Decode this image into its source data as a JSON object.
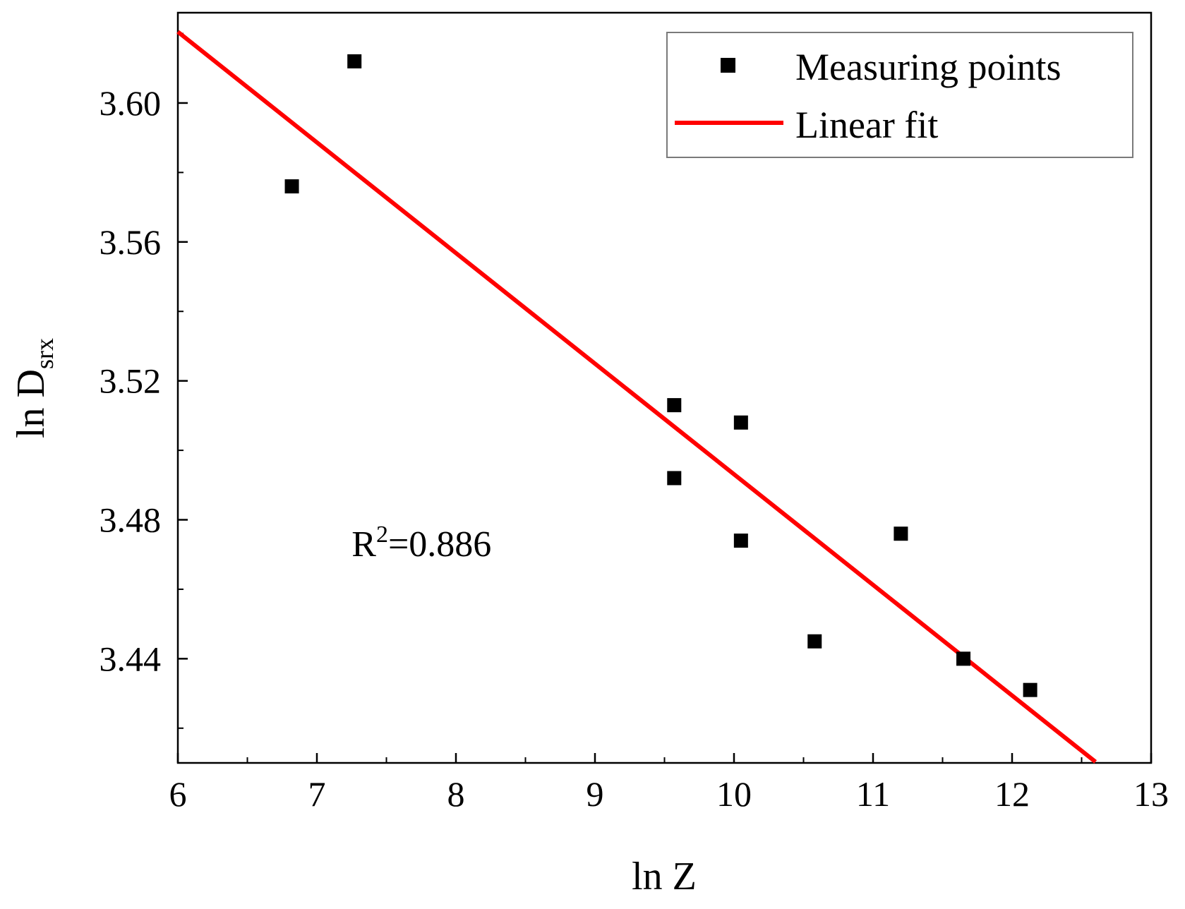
{
  "chart_data": {
    "type": "scatter",
    "title": "",
    "xlabel": {
      "main": "ln Z"
    },
    "ylabel": {
      "main": "ln D",
      "subscript": "srx"
    },
    "xlim": [
      6,
      13
    ],
    "ylim": [
      3.41,
      3.626
    ],
    "x_ticks": [
      6,
      7,
      8,
      9,
      10,
      11,
      12,
      13
    ],
    "x_tick_labels": [
      "6",
      "7",
      "8",
      "9",
      "10",
      "11",
      "12",
      "13"
    ],
    "x_minor_ticks": [
      6.5,
      7.5,
      8.5,
      9.5,
      10.5,
      11.5,
      12.5
    ],
    "y_ticks": [
      3.44,
      3.48,
      3.52,
      3.56,
      3.6
    ],
    "y_tick_labels": [
      "3.44",
      "3.48",
      "3.52",
      "3.56",
      "3.60"
    ],
    "y_minor_ticks": [
      3.42,
      3.46,
      3.5,
      3.54,
      3.58,
      3.62
    ],
    "grid": false,
    "legend_position": "top-right",
    "series": [
      {
        "name": "Measuring points",
        "kind": "scatter",
        "marker": "square",
        "color": "#000000",
        "x": [
          6.82,
          7.27,
          9.57,
          9.57,
          10.05,
          10.05,
          10.58,
          11.2,
          11.65,
          12.13
        ],
        "y": [
          3.576,
          3.612,
          3.513,
          3.492,
          3.508,
          3.474,
          3.445,
          3.476,
          3.44,
          3.431
        ]
      },
      {
        "name": "Linear fit",
        "kind": "line",
        "color": "#ff0000",
        "x": [
          6.0,
          12.6
        ],
        "y": [
          3.6205,
          3.4103
        ]
      }
    ],
    "annotation": {
      "base": "R",
      "superscript": "2",
      "rest": "=0.886",
      "x": 7.25,
      "y": 3.4695
    }
  }
}
